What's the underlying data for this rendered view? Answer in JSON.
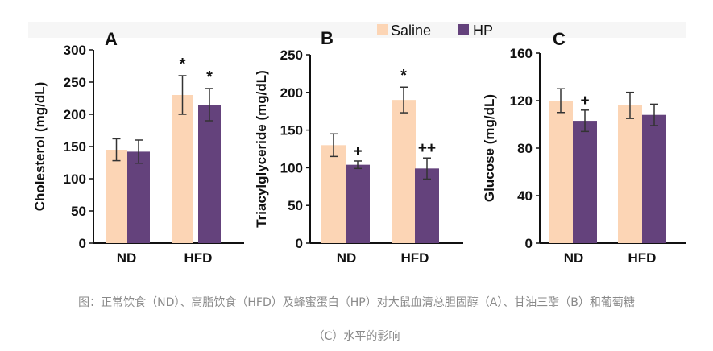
{
  "legend": {
    "items": [
      {
        "name": "Saline",
        "color": "#fcd5b5"
      },
      {
        "name": "HP",
        "color": "#64427c"
      }
    ],
    "placement": "top-center"
  },
  "colors": {
    "axis": "#111111",
    "error_bar": "#333333",
    "annotation": "#111111"
  },
  "caption": {
    "line1": "图：正常饮食（ND）、高脂饮食（HFD）及蜂蜜蛋白（HP）对大鼠血清总胆固醇（A）、甘油三酯（B）和葡萄糖",
    "line2": "（C）水平的影响"
  },
  "chart_data": [
    {
      "panel": "A",
      "type": "bar",
      "ylabel": "Cholesterol (mg/dL)",
      "categories": [
        "ND",
        "HFD"
      ],
      "ylim": [
        0,
        300
      ],
      "yticks": [
        0,
        50,
        100,
        150,
        200,
        250,
        300
      ],
      "series": [
        {
          "name": "Saline",
          "values": [
            145,
            230
          ],
          "errors": [
            17,
            30
          ],
          "annotations": [
            "",
            "*"
          ]
        },
        {
          "name": "HP",
          "values": [
            142,
            215
          ],
          "errors": [
            18,
            25
          ],
          "annotations": [
            "",
            "*"
          ]
        }
      ]
    },
    {
      "panel": "B",
      "type": "bar",
      "ylabel": "Triacylglyceride (mg/dL)",
      "categories": [
        "ND",
        "HFD"
      ],
      "ylim": [
        0,
        250
      ],
      "yticks": [
        0,
        50,
        100,
        150,
        200,
        250
      ],
      "series": [
        {
          "name": "Saline",
          "values": [
            130,
            190
          ],
          "errors": [
            15,
            17
          ],
          "annotations": [
            "",
            "*"
          ]
        },
        {
          "name": "HP",
          "values": [
            104,
            99
          ],
          "errors": [
            5,
            14
          ],
          "annotations": [
            "+",
            "++"
          ]
        }
      ]
    },
    {
      "panel": "C",
      "type": "bar",
      "ylabel": "Glucose  (mg/dL)",
      "categories": [
        "ND",
        "HFD"
      ],
      "ylim": [
        0,
        160
      ],
      "yticks": [
        0,
        40,
        80,
        120,
        160
      ],
      "series": [
        {
          "name": "Saline",
          "values": [
            120,
            116
          ],
          "errors": [
            10,
            11
          ],
          "annotations": [
            "",
            ""
          ]
        },
        {
          "name": "HP",
          "values": [
            103,
            108
          ],
          "errors": [
            9,
            9
          ],
          "annotations": [
            "+",
            ""
          ]
        }
      ]
    }
  ]
}
